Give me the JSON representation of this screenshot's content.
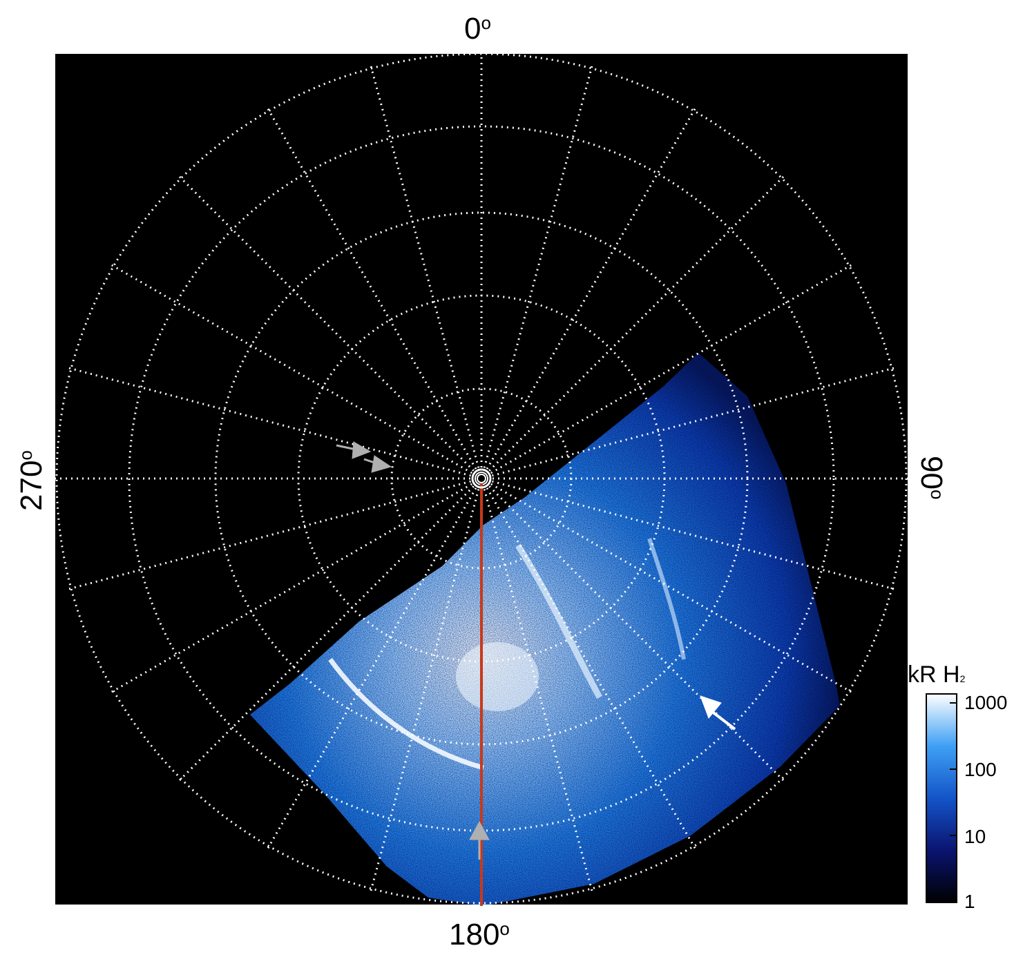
{
  "labels": {
    "top": "0",
    "bottom": "180",
    "left": "270",
    "right": "90",
    "degree_symbol": "o"
  },
  "colorbar": {
    "title_main": "kR H",
    "title_sub": "2",
    "ticks": [
      "1000",
      "100",
      "10",
      "1"
    ],
    "scale": "log"
  },
  "colors": {
    "background": "#000000",
    "grid": "#ffffff",
    "meridian_line": "#c8391a",
    "gray_arrows": "#b0b0b0",
    "white_arrow": "#ffffff",
    "emission_dim": "#0b2a8c",
    "emission_mid": "#1f7fe6",
    "emission_bright": "#e8f4ff"
  },
  "icons": [
    "gray-arrow-icon",
    "white-arrow-icon",
    "pole-marker-icon"
  ]
}
